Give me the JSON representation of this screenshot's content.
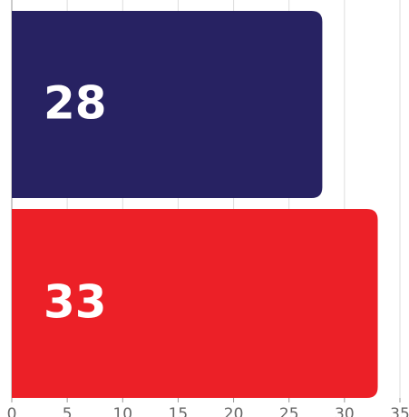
{
  "chart_data": {
    "type": "hbar",
    "categories": [
      null,
      null
    ],
    "series": [
      {
        "colors": [
          "#272262",
          "#ec2027"
        ],
        "values": [
          28,
          33
        ]
      }
    ],
    "xlim": [
      0,
      35
    ],
    "xticks": [
      0,
      5,
      10,
      15,
      20,
      25,
      30,
      35
    ],
    "grid": true
  }
}
